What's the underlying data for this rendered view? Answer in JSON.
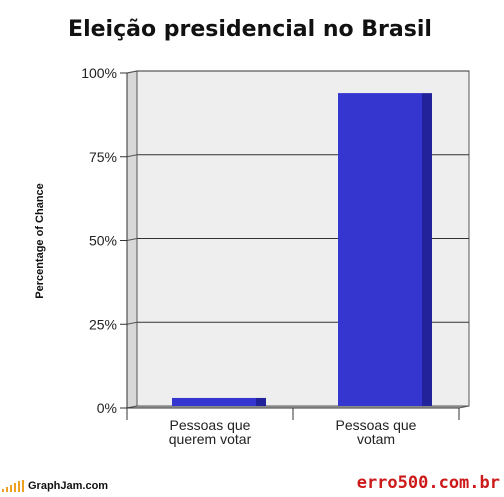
{
  "chart_data": {
    "type": "bar",
    "title": "Eleição presidencial no Brasil",
    "ylabel": "Percentage of Chance",
    "xlabel": "",
    "categories": [
      [
        "Pessoas que",
        "querem votar"
      ],
      [
        "Pessoas que",
        "votam"
      ]
    ],
    "values": [
      3,
      94
    ],
    "ylim": [
      0,
      100
    ],
    "yticks": [
      0,
      25,
      50,
      75,
      100
    ],
    "ytick_labels": [
      "0%",
      "25%",
      "50%",
      "75%",
      "100%"
    ],
    "grid": true,
    "bar_color": "#3535d0",
    "bar_side_color": "#22229a",
    "wall_color": "#eeeeee",
    "side_wall_color": "#d8d8d8"
  },
  "footer": {
    "left_brand": "GraphJam.com",
    "right_brand": "erro500.com.br",
    "right_brand_color": "#cc1a1a"
  }
}
